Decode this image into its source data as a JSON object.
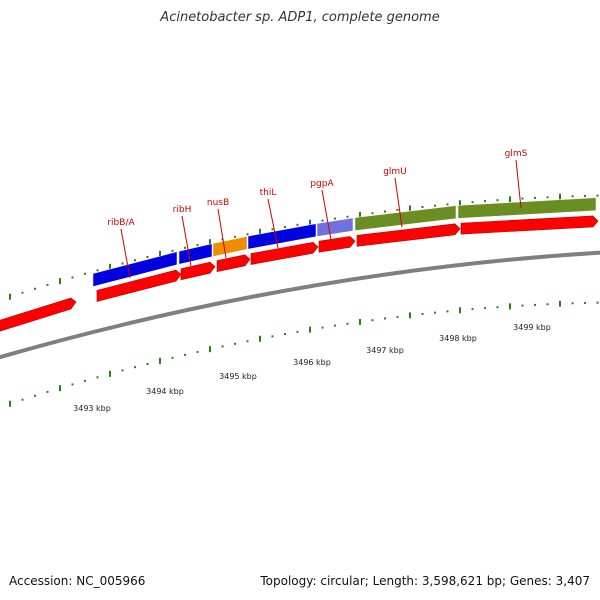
{
  "title": "Acinetobacter sp. ADP1, complete genome",
  "footer": {
    "accession": "Accession: NC_005966",
    "summary": "Topology: circular; Length: 3,598,621 bp; Genes: 3,407"
  },
  "colors": {
    "cds_arrow": "#ff0000",
    "backbone": "#7f7f7f",
    "tick": "#2e7d1b",
    "gene_label": "#d00000",
    "cog_blue": "#0000e0",
    "cog_orange": "#f08c00",
    "cog_lavender": "#7070e0",
    "cog_olive": "#6b8e23"
  },
  "genes": [
    {
      "name": "ribB/A",
      "cog": "cog_blue"
    },
    {
      "name": "ribH",
      "cog": "cog_blue"
    },
    {
      "name": "nusB",
      "cog": "cog_orange"
    },
    {
      "name": "thiL",
      "cog": "cog_blue"
    },
    {
      "name": "pgpA",
      "cog": "cog_lavender"
    },
    {
      "name": "glmU",
      "cog": "cog_olive"
    },
    {
      "name": "glmS",
      "cog": "cog_olive"
    }
  ],
  "kbp_labels": [
    "3493 kbp",
    "3494 kbp",
    "3495 kbp",
    "3496 kbp",
    "3497 kbp",
    "3498 kbp",
    "3499 kbp"
  ]
}
